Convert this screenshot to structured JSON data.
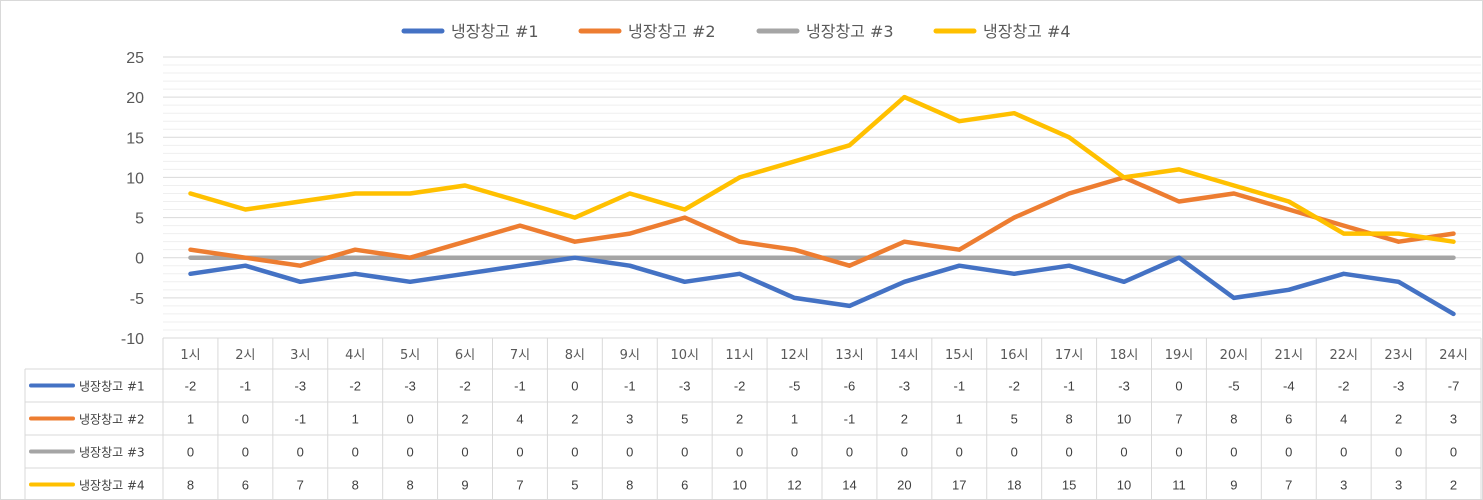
{
  "chart_data": {
    "type": "line",
    "title": "",
    "xlabel": "",
    "ylabel": "",
    "ylim": [
      -10,
      25
    ],
    "yticks": [
      25,
      20,
      15,
      10,
      5,
      0,
      -5,
      -10
    ],
    "ytick_labels": [
      "25",
      "20",
      "15",
      "10",
      "5",
      "0",
      "-5",
      "-10"
    ],
    "grid": "horizontal",
    "legend": "top",
    "data_table": true,
    "categories": [
      "1시",
      "2시",
      "3시",
      "4시",
      "5시",
      "6시",
      "7시",
      "8시",
      "9시",
      "10시",
      "11시",
      "12시",
      "13시",
      "14시",
      "15시",
      "16시",
      "17시",
      "18시",
      "19시",
      "20시",
      "21시",
      "22시",
      "23시",
      "24시"
    ],
    "series": [
      {
        "name": "냉장창고 #1",
        "color": "#4472c4",
        "values": [
          -2,
          -1,
          -3,
          -2,
          -3,
          -2,
          -1,
          0,
          -1,
          -3,
          -2,
          -5,
          -6,
          -3,
          -1,
          -2,
          -1,
          -3,
          0,
          -5,
          -4,
          -2,
          -3,
          -7
        ]
      },
      {
        "name": "냉장창고 #2",
        "color": "#ed7d31",
        "values": [
          1,
          0,
          -1,
          1,
          0,
          2,
          4,
          2,
          3,
          5,
          2,
          1,
          -1,
          2,
          1,
          5,
          8,
          10,
          7,
          8,
          6,
          4,
          2,
          3
        ]
      },
      {
        "name": "냉장창고 #3",
        "color": "#a5a5a5",
        "values": [
          0,
          0,
          0,
          0,
          0,
          0,
          0,
          0,
          0,
          0,
          0,
          0,
          0,
          0,
          0,
          0,
          0,
          0,
          0,
          0,
          0,
          0,
          0,
          0
        ]
      },
      {
        "name": "냉장창고 #4",
        "color": "#ffc000",
        "values": [
          8,
          6,
          7,
          8,
          8,
          9,
          7,
          5,
          8,
          6,
          10,
          12,
          14,
          20,
          17,
          18,
          15,
          10,
          11,
          9,
          7,
          3,
          3,
          2
        ]
      }
    ]
  }
}
